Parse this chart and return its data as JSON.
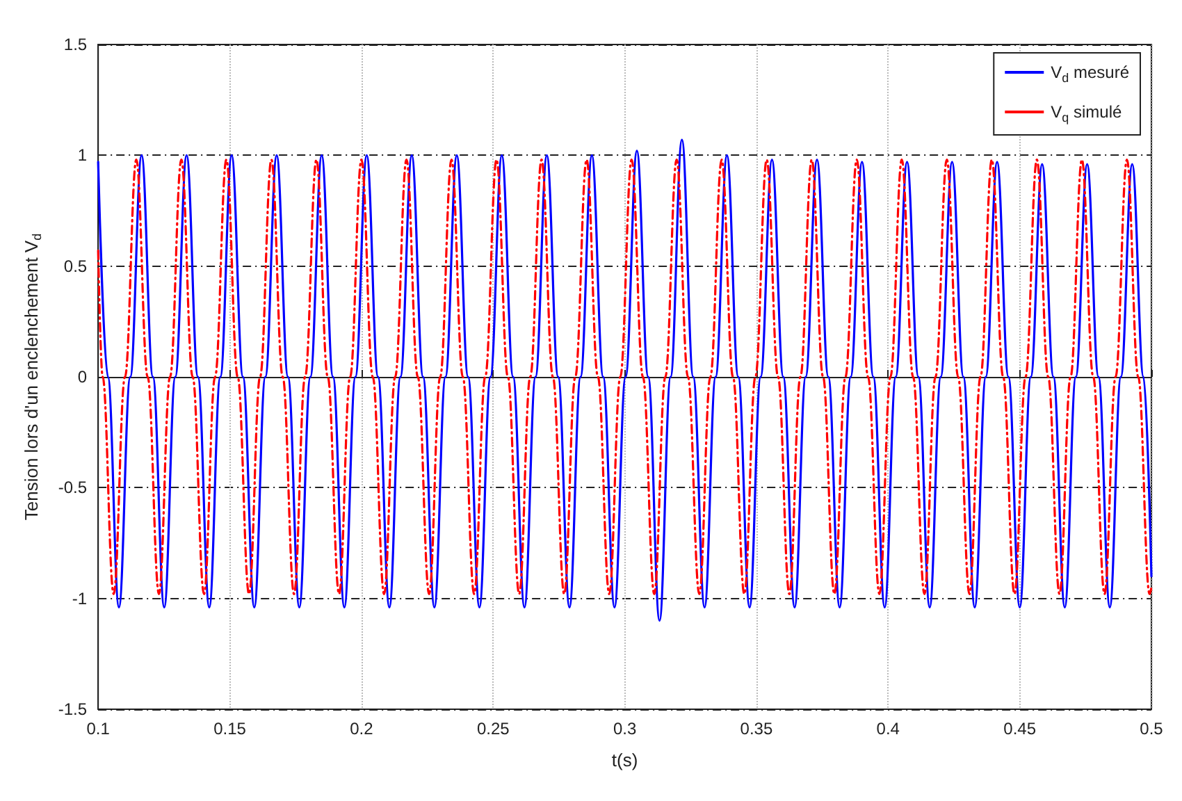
{
  "chart_data": {
    "type": "line",
    "xlabel": "t(s)",
    "ylabel": "Tension lors d'un enclenchement V$_{d}$",
    "xlim": [
      0.1,
      0.5
    ],
    "xticks": [
      0.1,
      0.15,
      0.2,
      0.25,
      0.3,
      0.35,
      0.4,
      0.45,
      0.5
    ],
    "ylim": [
      -1.5,
      1.5
    ],
    "yticks": [
      -1.5,
      -1,
      -0.5,
      0,
      0.5,
      1,
      1.5
    ],
    "grid": true,
    "legend": "top right",
    "marker": "none",
    "series": [
      {
        "name": "V$_{d}$ mesuré",
        "color": "#0000ff",
        "line_style": "solid",
        "x": [
          0.1,
          0.1037,
          0.1079,
          0.1122,
          0.1165,
          0.1208,
          0.1251,
          0.1293,
          0.1336,
          0.1379,
          0.1422,
          0.1464,
          0.1507,
          0.155,
          0.1593,
          0.1635,
          0.1678,
          0.1721,
          0.1764,
          0.1806,
          0.1849,
          0.1892,
          0.1935,
          0.1977,
          0.202,
          0.2063,
          0.2106,
          0.2148,
          0.2191,
          0.2234,
          0.2277,
          0.2319,
          0.2362,
          0.2405,
          0.2448,
          0.249,
          0.2533,
          0.2576,
          0.2619,
          0.2661,
          0.2704,
          0.2747,
          0.279,
          0.2832,
          0.2875,
          0.2918,
          0.2961,
          0.3003,
          0.3046,
          0.3089,
          0.3132,
          0.3174,
          0.3217,
          0.326,
          0.3303,
          0.3345,
          0.3388,
          0.3431,
          0.3474,
          0.3516,
          0.3559,
          0.3602,
          0.3645,
          0.3687,
          0.373,
          0.3773,
          0.3816,
          0.3858,
          0.3901,
          0.3944,
          0.3987,
          0.4029,
          0.4072,
          0.4115,
          0.4158,
          0.42,
          0.4243,
          0.4286,
          0.4329,
          0.4371,
          0.4414,
          0.4457,
          0.45,
          0.4542,
          0.4585,
          0.4628,
          0.4671,
          0.4713,
          0.4756,
          0.4799,
          0.4842,
          0.4884,
          0.4927,
          0.497,
          0.5
        ],
        "values": [
          0.97,
          0,
          -1.04,
          0,
          1.0,
          0,
          -1.04,
          0,
          1.0,
          0,
          -1.04,
          0,
          1.0,
          0,
          -1.04,
          0,
          1.0,
          0,
          -1.04,
          0,
          1.0,
          0,
          -1.04,
          0,
          1.0,
          0,
          -1.04,
          0,
          1.0,
          0,
          -1.04,
          0,
          1.0,
          0,
          -1.04,
          0,
          1.0,
          0,
          -1.04,
          0,
          1.0,
          0,
          -1.04,
          0,
          1.0,
          0,
          -1.04,
          0,
          1.02,
          0,
          -1.1,
          0,
          1.07,
          0,
          -1.04,
          0,
          1.0,
          0,
          -1.04,
          0,
          0.98,
          0,
          -1.04,
          0,
          0.98,
          0,
          -1.04,
          0,
          0.97,
          0,
          -1.04,
          0,
          0.97,
          0,
          -1.04,
          0,
          0.97,
          0,
          -1.04,
          0,
          0.97,
          0,
          -1.04,
          0,
          0.96,
          0,
          -1.04,
          0,
          0.96,
          0,
          -1.04,
          0,
          0.96,
          0,
          -0.9
        ]
      },
      {
        "name": "V$_{q}$ simulé",
        "color": "#ff0000",
        "line_style": "dashed",
        "x": [
          0.1,
          0.1017,
          0.1059,
          0.1102,
          0.1145,
          0.1188,
          0.1231,
          0.1273,
          0.1316,
          0.1359,
          0.1402,
          0.1444,
          0.1487,
          0.153,
          0.1573,
          0.1615,
          0.1658,
          0.1701,
          0.1744,
          0.1786,
          0.1829,
          0.1872,
          0.1915,
          0.1957,
          0.2,
          0.2043,
          0.2086,
          0.2128,
          0.2171,
          0.2214,
          0.2257,
          0.2299,
          0.2342,
          0.2385,
          0.2428,
          0.247,
          0.2513,
          0.2556,
          0.2599,
          0.2641,
          0.2684,
          0.2727,
          0.277,
          0.2812,
          0.2855,
          0.2898,
          0.2941,
          0.2983,
          0.3026,
          0.3069,
          0.3112,
          0.3154,
          0.3197,
          0.324,
          0.3283,
          0.3325,
          0.3368,
          0.3411,
          0.3454,
          0.3496,
          0.3539,
          0.3582,
          0.3625,
          0.3667,
          0.371,
          0.3753,
          0.3796,
          0.3838,
          0.3881,
          0.3924,
          0.3967,
          0.4009,
          0.4052,
          0.4095,
          0.4138,
          0.418,
          0.4223,
          0.4266,
          0.4309,
          0.4351,
          0.4394,
          0.4437,
          0.448,
          0.4522,
          0.4565,
          0.4608,
          0.4651,
          0.4693,
          0.4736,
          0.4779,
          0.4822,
          0.4864,
          0.4907,
          0.495,
          0.4993,
          0.5
        ],
        "values": [
          0.57,
          0,
          -0.98,
          0,
          0.98,
          0,
          -0.98,
          0,
          0.98,
          0,
          -0.98,
          0,
          0.98,
          0,
          -0.98,
          0,
          0.98,
          0,
          -0.98,
          0,
          0.98,
          0,
          -0.98,
          0,
          0.98,
          0,
          -0.98,
          0,
          0.98,
          0,
          -0.98,
          0,
          0.98,
          0,
          -0.98,
          0,
          0.98,
          0,
          -0.98,
          0,
          0.98,
          0,
          -0.98,
          0,
          0.98,
          0,
          -0.98,
          0,
          0.98,
          0,
          -0.98,
          0,
          0.98,
          0,
          -0.98,
          0,
          0.98,
          0,
          -0.98,
          0,
          0.98,
          0,
          -0.98,
          0,
          0.98,
          0,
          -0.98,
          0,
          0.98,
          0,
          -0.98,
          0,
          0.98,
          0,
          -0.98,
          0,
          0.98,
          0,
          -0.98,
          0,
          0.98,
          0,
          -0.98,
          0,
          0.98,
          0,
          -0.98,
          0,
          0.98,
          0,
          -0.98,
          0,
          0.98,
          0,
          -0.98,
          -0.95
        ]
      }
    ]
  }
}
